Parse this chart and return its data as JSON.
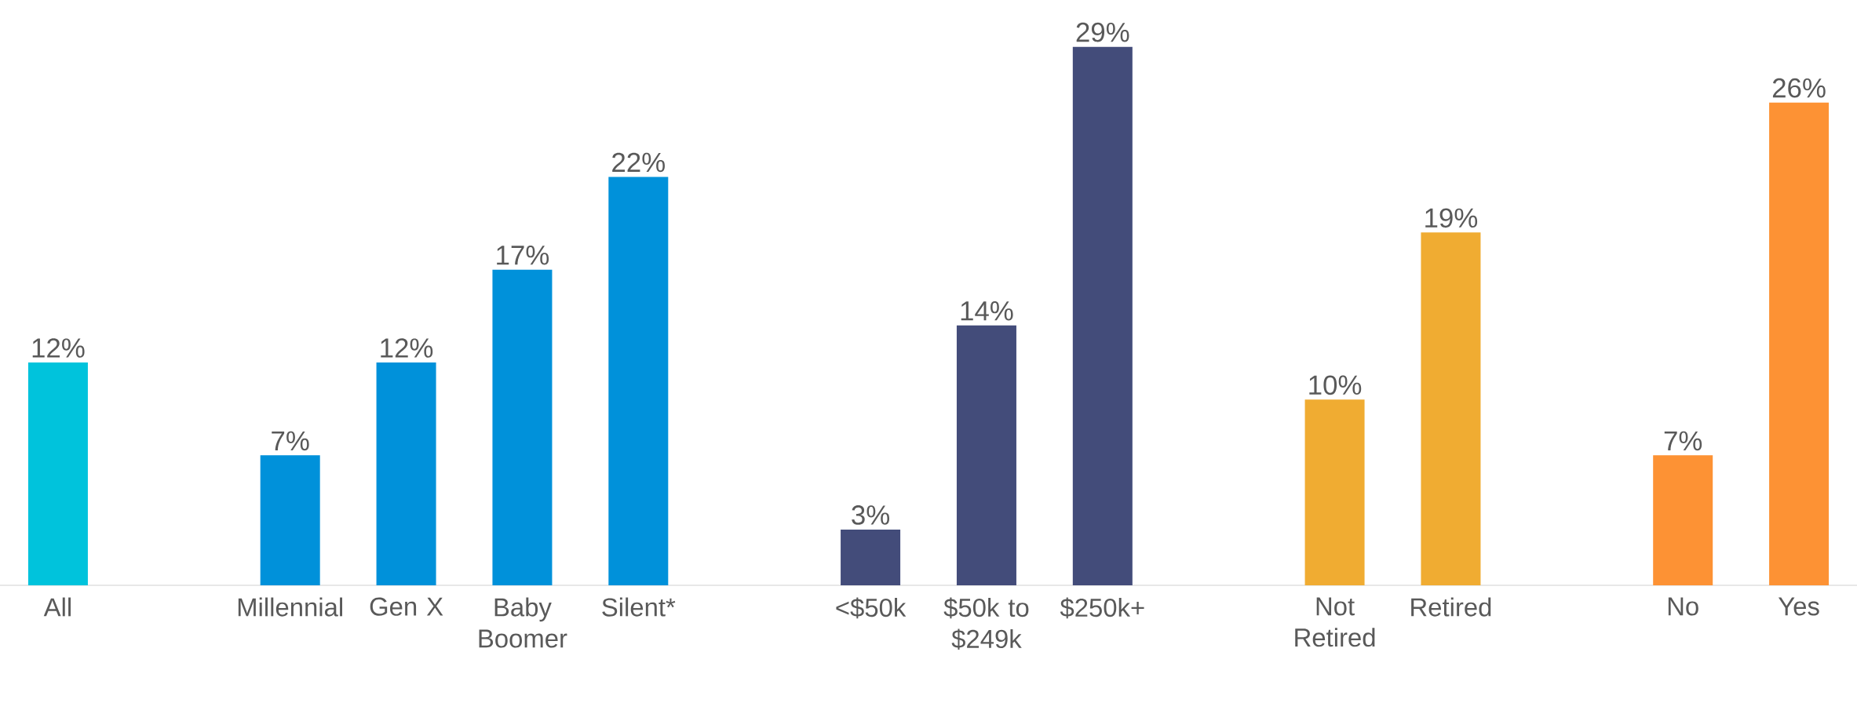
{
  "chart_data": {
    "type": "bar",
    "categories": [
      "All",
      null,
      "Millennial",
      "Gen X",
      "Baby Boomer",
      "Silent*",
      null,
      "<$50k",
      "$50k to $249k",
      "$250k+",
      null,
      "Not Retired",
      "Retired",
      null,
      "No",
      "Yes"
    ],
    "values": [
      12,
      null,
      7,
      12,
      17,
      22,
      null,
      3,
      14,
      29,
      null,
      10,
      19,
      null,
      7,
      26
    ],
    "value_labels": [
      "12%",
      null,
      "7%",
      "12%",
      "17%",
      "22%",
      null,
      "3%",
      "14%",
      "29%",
      null,
      "10%",
      "19%",
      null,
      "7%",
      "26%"
    ],
    "colors": [
      "#00c3dc",
      "#0091da",
      "#0091da",
      "#0091da",
      "#0091da",
      "#0091da",
      "#434c7a",
      "#434c7a",
      "#434c7a",
      "#434c7a",
      "#f0ac32",
      "#f0ac32",
      "#f0ac32",
      "#fd9234",
      "#fd9234",
      "#fd9234"
    ]
  }
}
